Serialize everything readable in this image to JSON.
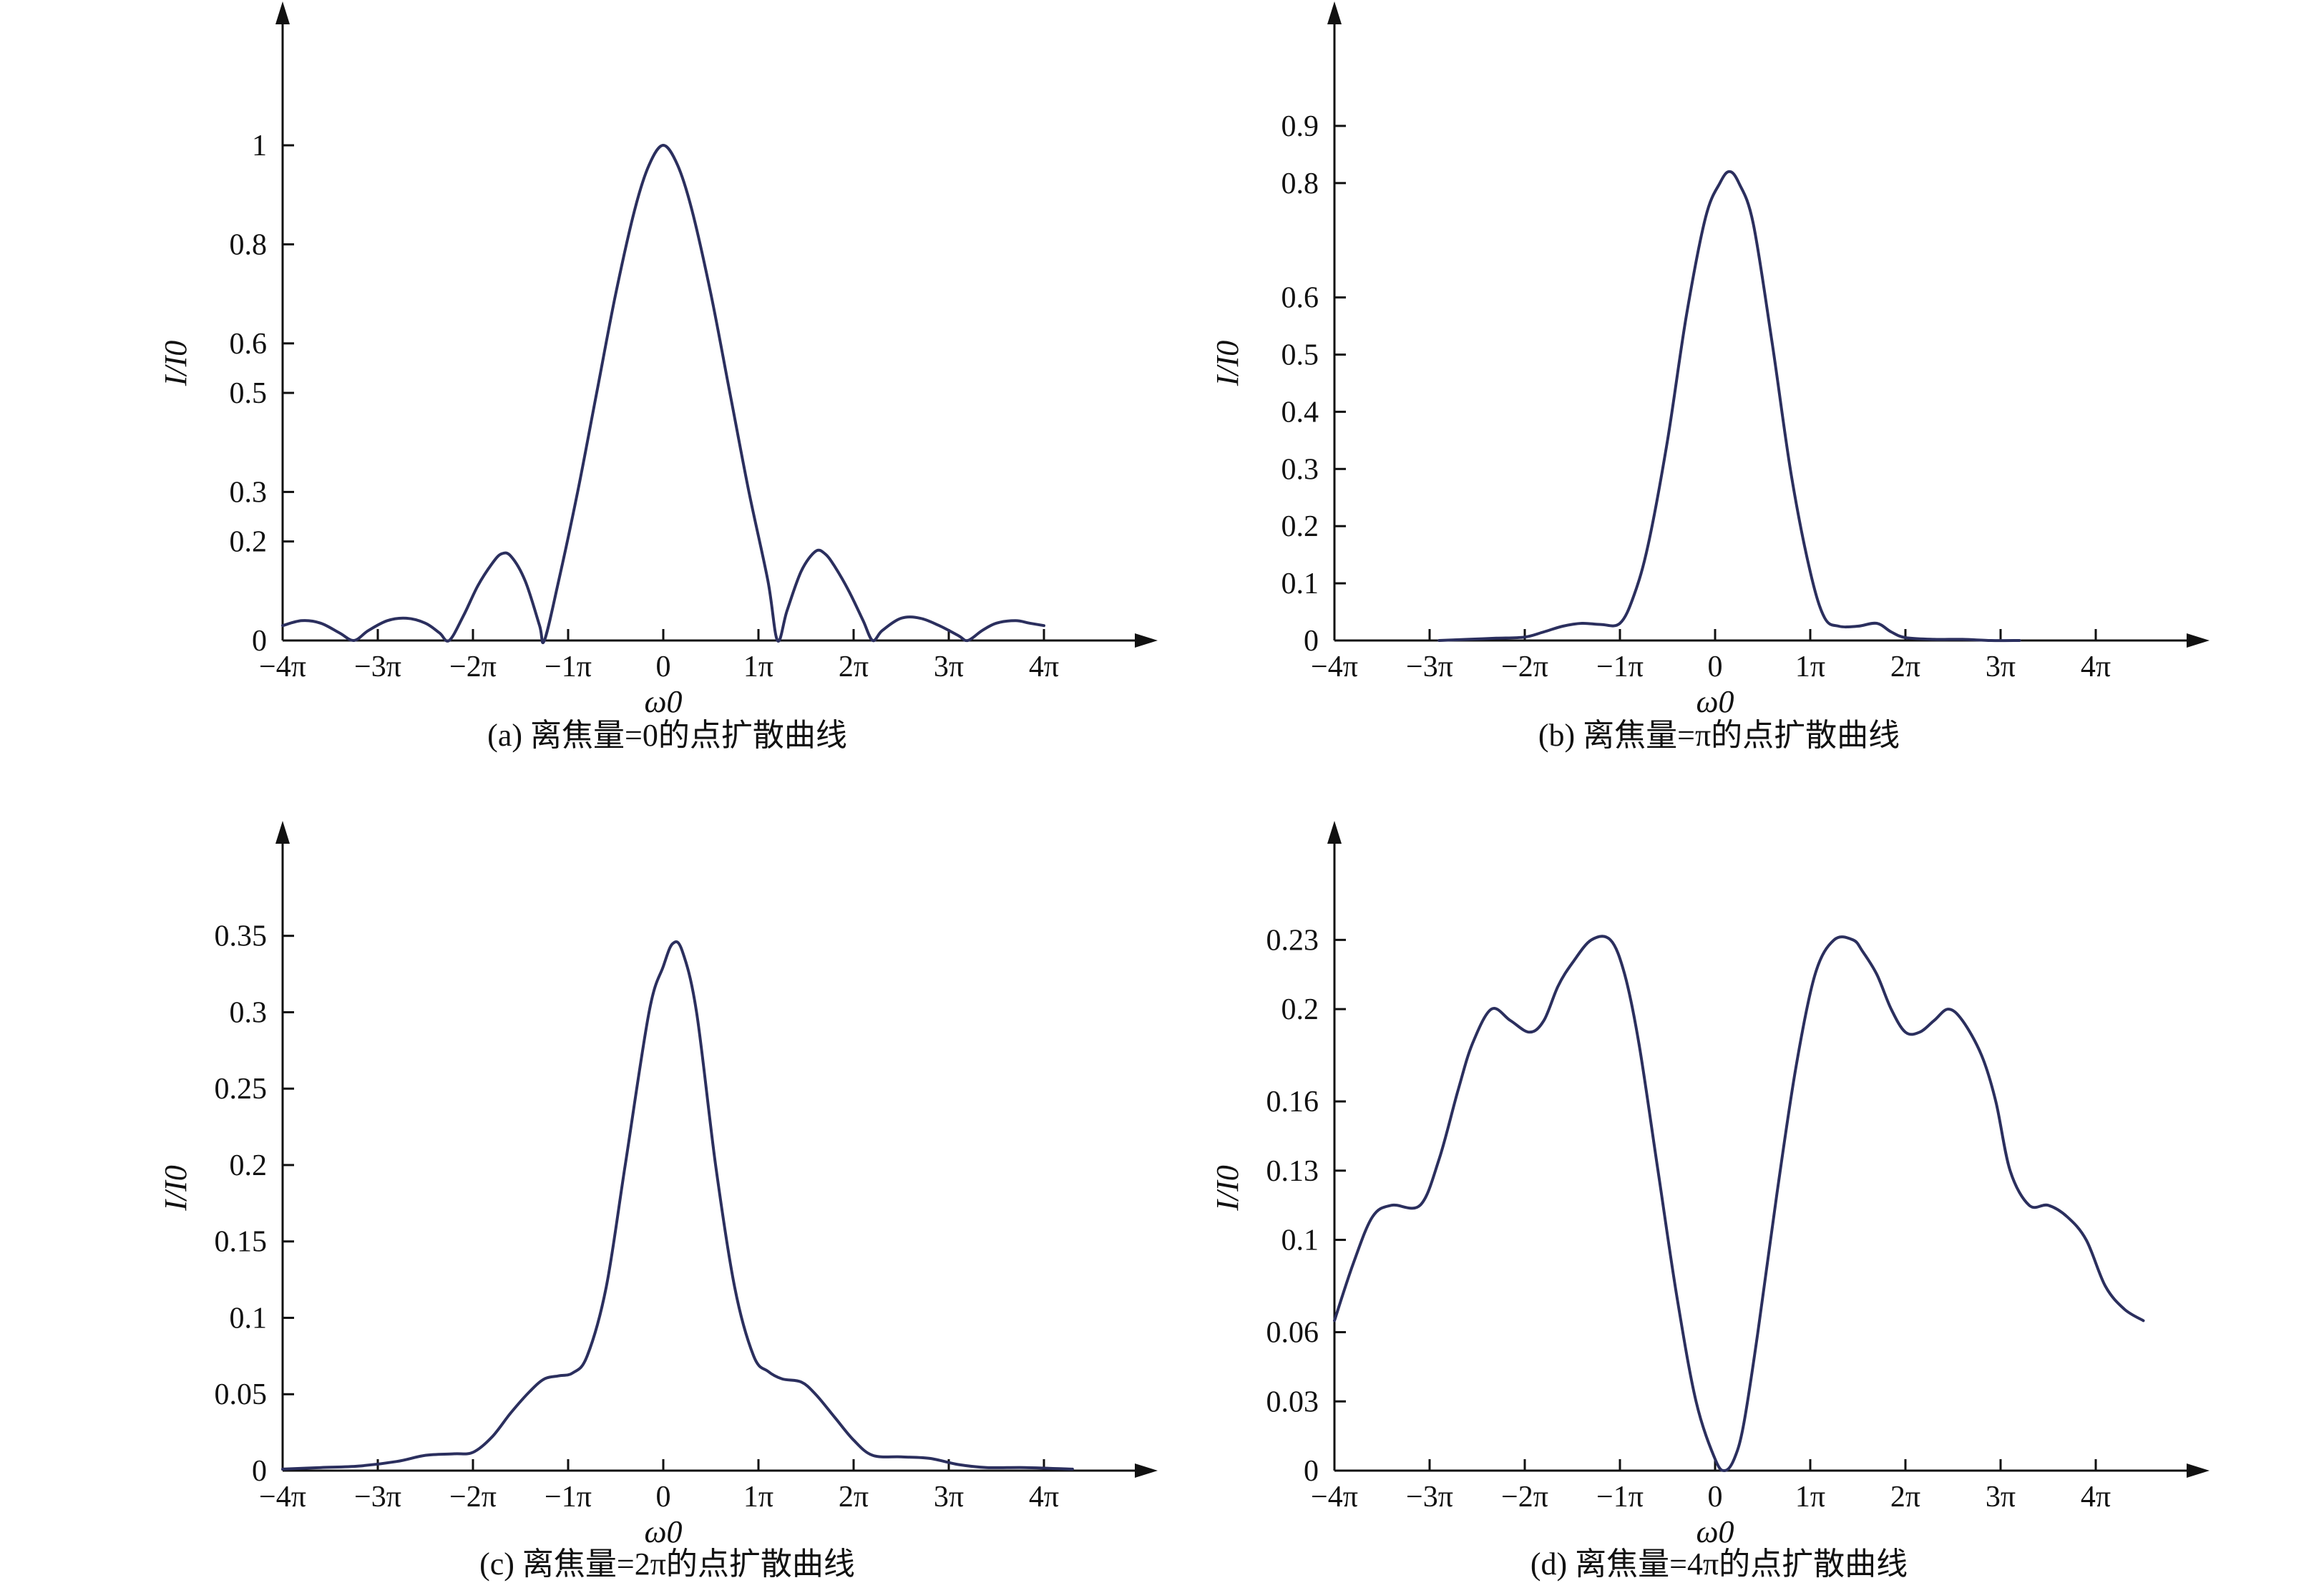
{
  "chart_data": [
    {
      "id": "a",
      "type": "line",
      "caption": "(a) 离焦量=0的点扩散曲线",
      "xlabel": "ω0",
      "ylabel": "I/I0",
      "xticks": [
        "−4π",
        "−3π",
        "−2π",
        "−1π",
        "0",
        "1π",
        "2π",
        "3π",
        "4π"
      ],
      "xlim": [
        -4,
        4.9
      ],
      "yticks": [
        {
          "v": 0,
          "label": "0"
        },
        {
          "v": 0.2,
          "label": "0.2"
        },
        {
          "v": 0.3,
          "label": "0.3"
        },
        {
          "v": 0.5,
          "label": "0.5"
        },
        {
          "v": 0.6,
          "label": "0.6"
        },
        {
          "v": 0.8,
          "label": "0.8"
        },
        {
          "v": 1,
          "label": "1"
        }
      ],
      "ylim": [
        0,
        1.12
      ],
      "x_units": "π",
      "x": [
        -4.0,
        -3.8,
        -3.6,
        -3.4,
        -3.25,
        -3.1,
        -2.9,
        -2.7,
        -2.5,
        -2.35,
        -2.25,
        -2.1,
        -1.95,
        -1.8,
        -1.7,
        -1.6,
        -1.45,
        -1.3,
        -1.25,
        -1.1,
        -0.9,
        -0.7,
        -0.5,
        -0.3,
        -0.15,
        0.0,
        0.15,
        0.3,
        0.5,
        0.7,
        0.9,
        1.1,
        1.2,
        1.3,
        1.45,
        1.6,
        1.7,
        1.8,
        1.95,
        2.1,
        2.2,
        2.3,
        2.5,
        2.7,
        2.9,
        3.1,
        3.2,
        3.35,
        3.5,
        3.7,
        3.85,
        4.0
      ],
      "y": [
        0.03,
        0.04,
        0.035,
        0.015,
        0.0,
        0.02,
        0.04,
        0.045,
        0.035,
        0.015,
        0.0,
        0.05,
        0.11,
        0.155,
        0.175,
        0.17,
        0.12,
        0.03,
        0.0,
        0.12,
        0.3,
        0.5,
        0.7,
        0.87,
        0.96,
        1.0,
        0.96,
        0.87,
        0.7,
        0.5,
        0.3,
        0.12,
        0.0,
        0.06,
        0.14,
        0.18,
        0.175,
        0.15,
        0.1,
        0.04,
        0.0,
        0.02,
        0.045,
        0.045,
        0.03,
        0.01,
        0.0,
        0.02,
        0.035,
        0.04,
        0.035,
        0.03
      ]
    },
    {
      "id": "b",
      "type": "line",
      "caption": "(b) 离焦量=π的点扩散曲线",
      "xlabel": "ω0",
      "ylabel": "I/I0",
      "xticks": [
        "−4π",
        "−3π",
        "−2π",
        "−1π",
        "0",
        "1π",
        "2π",
        "3π",
        "4π"
      ],
      "xlim": [
        -4,
        4.9
      ],
      "yticks": [
        {
          "v": 0,
          "label": "0"
        },
        {
          "v": 0.1,
          "label": "0.1"
        },
        {
          "v": 0.2,
          "label": "0.2"
        },
        {
          "v": 0.3,
          "label": "0.3"
        },
        {
          "v": 0.4,
          "label": "0.4"
        },
        {
          "v": 0.5,
          "label": "0.5"
        },
        {
          "v": 0.6,
          "label": "0.6"
        },
        {
          "v": 0.8,
          "label": "0.8"
        },
        {
          "v": 0.9,
          "label": "0.9"
        }
      ],
      "ylim": [
        0,
        0.97
      ],
      "x_units": "π",
      "x": [
        -2.9,
        -2.6,
        -2.3,
        -2.0,
        -1.8,
        -1.6,
        -1.4,
        -1.2,
        -1.0,
        -0.85,
        -0.7,
        -0.5,
        -0.3,
        -0.1,
        0.05,
        0.15,
        0.25,
        0.4,
        0.6,
        0.8,
        1.0,
        1.15,
        1.3,
        1.5,
        1.7,
        1.85,
        2.0,
        2.3,
        2.6,
        2.9,
        3.2
      ],
      "y": [
        0.0,
        0.002,
        0.004,
        0.006,
        0.015,
        0.025,
        0.03,
        0.028,
        0.03,
        0.08,
        0.17,
        0.35,
        0.57,
        0.74,
        0.8,
        0.82,
        0.8,
        0.73,
        0.52,
        0.29,
        0.12,
        0.04,
        0.025,
        0.025,
        0.03,
        0.015,
        0.005,
        0.002,
        0.002,
        0.0,
        0.0
      ]
    },
    {
      "id": "c",
      "type": "line",
      "caption": "(c) 离焦量=2π的点扩散曲线",
      "xlabel": "ω0",
      "ylabel": "I/I0",
      "xticks": [
        "−4π",
        "−3π",
        "−2π",
        "−1π",
        "0",
        "1π",
        "2π",
        "3π",
        "4π"
      ],
      "xlim": [
        -4,
        4.9
      ],
      "yticks": [
        {
          "v": 0,
          "label": "0"
        },
        {
          "v": 0.05,
          "label": "0.05"
        },
        {
          "v": 0.1,
          "label": "0.1"
        },
        {
          "v": 0.15,
          "label": "0.15"
        },
        {
          "v": 0.2,
          "label": "0.2"
        },
        {
          "v": 0.25,
          "label": "0.25"
        },
        {
          "v": 0.3,
          "label": "0.3"
        },
        {
          "v": 0.35,
          "label": "0.35"
        }
      ],
      "ylim": [
        0,
        0.37
      ],
      "x_units": "π",
      "x": [
        -4.0,
        -3.6,
        -3.2,
        -2.8,
        -2.5,
        -2.2,
        -2.0,
        -1.8,
        -1.6,
        -1.4,
        -1.25,
        -1.1,
        -0.95,
        -0.8,
        -0.6,
        -0.4,
        -0.15,
        0.0,
        0.1,
        0.2,
        0.35,
        0.55,
        0.75,
        0.95,
        1.1,
        1.25,
        1.45,
        1.6,
        1.8,
        2.0,
        2.2,
        2.5,
        2.8,
        3.1,
        3.4,
        3.8,
        4.3
      ],
      "y": [
        0.001,
        0.002,
        0.003,
        0.006,
        0.01,
        0.011,
        0.012,
        0.022,
        0.038,
        0.052,
        0.06,
        0.062,
        0.064,
        0.075,
        0.12,
        0.2,
        0.3,
        0.33,
        0.345,
        0.34,
        0.3,
        0.2,
        0.12,
        0.075,
        0.065,
        0.06,
        0.058,
        0.05,
        0.035,
        0.02,
        0.01,
        0.009,
        0.008,
        0.004,
        0.002,
        0.002,
        0.001
      ]
    },
    {
      "id": "d",
      "type": "line",
      "caption": "(d) 离焦量=4π的点扩散曲线",
      "xlabel": "ω0",
      "ylabel": "I/I0",
      "xticks": [
        "−4π",
        "−3π",
        "−2π",
        "−1π",
        "0",
        "1π",
        "2π",
        "3π",
        "4π"
      ],
      "xlim": [
        -4,
        4.9
      ],
      "yticks": [
        {
          "v": 0,
          "label": "0"
        },
        {
          "v": 0.03,
          "label": "0.03"
        },
        {
          "v": 0.06,
          "label": "0.06"
        },
        {
          "v": 0.1,
          "label": "0.1"
        },
        {
          "v": 0.13,
          "label": "0.13"
        },
        {
          "v": 0.16,
          "label": "0.16"
        },
        {
          "v": 0.2,
          "label": "0.2"
        },
        {
          "v": 0.23,
          "label": "0.23"
        }
      ],
      "ylim": [
        0,
        0.245
      ],
      "x_units": "π",
      "x": [
        -4.0,
        -3.8,
        -3.6,
        -3.4,
        -3.1,
        -2.9,
        -2.7,
        -2.55,
        -2.35,
        -2.15,
        -1.95,
        -1.8,
        -1.65,
        -1.5,
        -1.3,
        -1.1,
        -0.95,
        -0.8,
        -0.6,
        -0.4,
        -0.2,
        0.0,
        0.1,
        0.2,
        0.3,
        0.45,
        0.65,
        0.85,
        1.05,
        1.25,
        1.45,
        1.55,
        1.7,
        1.85,
        2.0,
        2.15,
        2.3,
        2.45,
        2.6,
        2.8,
        2.95,
        3.1,
        3.3,
        3.5,
        3.7,
        3.9,
        4.1,
        4.3,
        4.5
      ],
      "y": [
        0.065,
        0.09,
        0.11,
        0.115,
        0.115,
        0.135,
        0.165,
        0.185,
        0.2,
        0.195,
        0.19,
        0.195,
        0.21,
        0.22,
        0.23,
        0.23,
        0.215,
        0.185,
        0.13,
        0.075,
        0.03,
        0.005,
        0.0,
        0.005,
        0.02,
        0.06,
        0.12,
        0.175,
        0.215,
        0.23,
        0.23,
        0.225,
        0.215,
        0.2,
        0.19,
        0.19,
        0.195,
        0.2,
        0.195,
        0.18,
        0.16,
        0.13,
        0.115,
        0.115,
        0.11,
        0.1,
        0.08,
        0.07,
        0.065
      ]
    }
  ]
}
